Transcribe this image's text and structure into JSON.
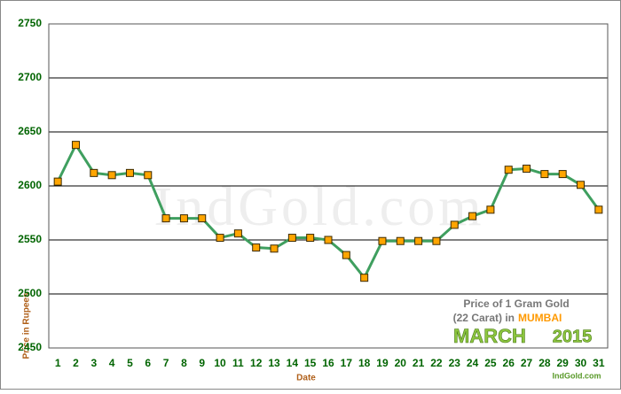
{
  "chart_data": {
    "type": "line",
    "y_label": "Price in Rupees",
    "x_label": "Date",
    "categories": [
      "1",
      "2",
      "3",
      "4",
      "5",
      "6",
      "7",
      "8",
      "9",
      "10",
      "11",
      "12",
      "13",
      "14",
      "15",
      "16",
      "17",
      "18",
      "19",
      "20",
      "21",
      "22",
      "23",
      "24",
      "25",
      "26",
      "27",
      "28",
      "29",
      "30",
      "31"
    ],
    "series": [
      {
        "name": "Price of 1 Gram Gold",
        "color": "#3f9f5f",
        "marker_color": "#ffa500",
        "values": [
          2604,
          2638,
          2612,
          2610,
          2612,
          2610,
          2570,
          2570,
          2570,
          2552,
          2556,
          2543,
          2542,
          2552,
          2552,
          2550,
          2536,
          2515,
          2549,
          2549,
          2549,
          2549,
          2564,
          2572,
          2578,
          2615,
          2616,
          2611,
          2611,
          2601,
          2578
        ]
      }
    ],
    "ylim": [
      2450,
      2750
    ],
    "yticks": [
      2450,
      2500,
      2550,
      2600,
      2650,
      2700,
      2750
    ],
    "grid": true,
    "legend_title": "Price of 1 Gram Gold",
    "legend_line_prefix": "(22 Carat) in",
    "legend_city": "MUMBAI",
    "legend_month": "MARCH",
    "legend_year": "2015",
    "watermark": "IndGold.com",
    "footer": "IndGold.com"
  }
}
